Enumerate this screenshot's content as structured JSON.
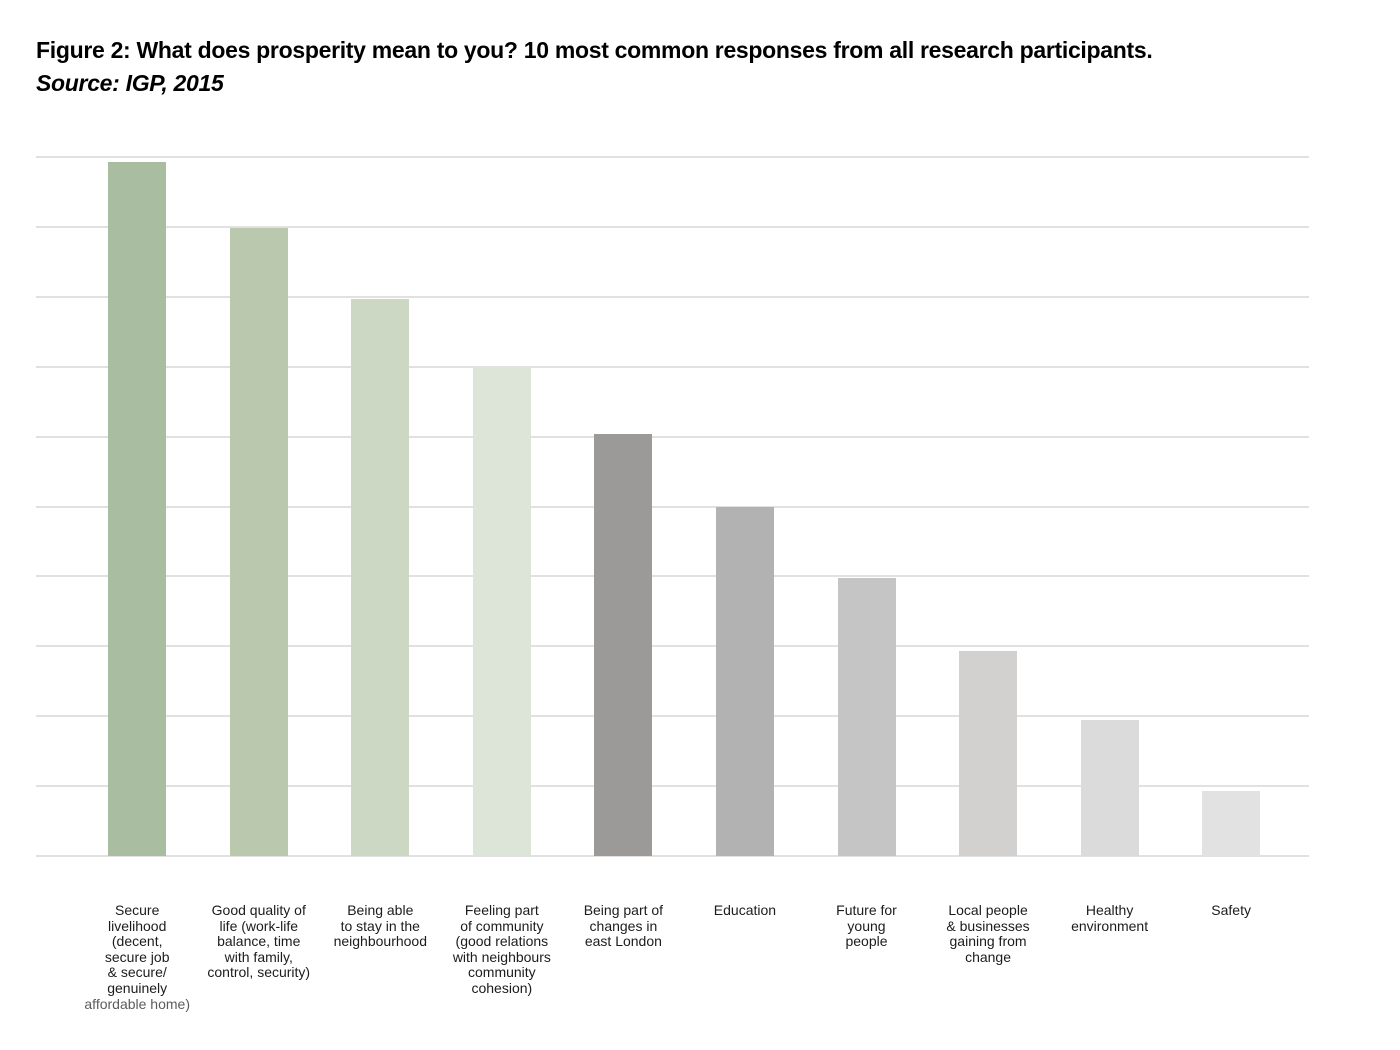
{
  "figure": {
    "title": "Figure 2: What does prosperity mean to you? 10 most common responses from all research participants.",
    "source": "Source: IGP, 2015"
  },
  "chart_data": {
    "type": "bar",
    "title": "Figure 2: What does prosperity mean to you? 10 most common responses from all research participants.",
    "subtitle": "Source: IGP, 2015",
    "xlabel": "",
    "ylabel": "",
    "ylim": [
      0,
      10
    ],
    "gridline_step": 1,
    "grid": true,
    "y_axis_tick_labels_visible": false,
    "legend": "none",
    "categories": [
      {
        "label": "Secure livelihood (decent, secure job & secure/ genuinely affordable home)",
        "lines": [
          "Secure",
          "livelihood",
          "(decent,",
          "secure job",
          "& secure/",
          "genuinely",
          "affordable home)"
        ],
        "muted_line_index": 6,
        "value": 9.93,
        "color": "#a9bda0"
      },
      {
        "label": "Good quality of life (work-life balance, time with family, control, security)",
        "lines": [
          "Good quality of",
          "life (work-life",
          "balance, time",
          "with family,",
          "control, security)"
        ],
        "value": 8.98,
        "color": "#bac9ad"
      },
      {
        "label": "Being able to stay in the neighbourhood",
        "lines": [
          "Being able",
          "to stay in the",
          "neighbourhood"
        ],
        "value": 7.97,
        "color": "#ccd7c4"
      },
      {
        "label": "Feeling part of community (good relations with neighbours community cohesion)",
        "lines": [
          "Feeling part",
          "of community",
          "(good relations",
          "with neighbours",
          "community",
          "cohesion)"
        ],
        "value": 6.98,
        "color": "#dde5d8"
      },
      {
        "label": "Being part of changes in east London",
        "lines": [
          "Being part of",
          "changes in",
          "east London"
        ],
        "value": 6.04,
        "color": "#9c9a98"
      },
      {
        "label": "Education",
        "lines": [
          "Education"
        ],
        "value": 5.0,
        "color": "#b2b2b2"
      },
      {
        "label": "Future for young people",
        "lines": [
          "Future for",
          "young",
          "people"
        ],
        "value": 3.98,
        "color": "#c6c5c5"
      },
      {
        "label": "Local people & businesses gaining from change",
        "lines": [
          "Local people",
          "& businesses",
          "gaining from",
          "change"
        ],
        "value": 2.94,
        "color": "#d3d0d0"
      },
      {
        "label": "Healthy environment",
        "lines": [
          "Healthy",
          "environment"
        ],
        "value": 1.94,
        "color": "#dcdbdb"
      },
      {
        "label": "Safety",
        "lines": [
          "Safety"
        ],
        "value": 0.93,
        "color": "#e3e2e2"
      }
    ]
  },
  "colors": {
    "background": "#ffffff",
    "gridline": "#e1e1e1",
    "title_text": "#000000",
    "label_text": "#1c1c1c",
    "muted_label_text": "#5c5c5c"
  }
}
